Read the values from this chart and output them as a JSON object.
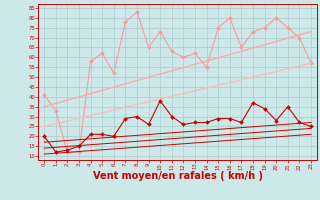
{
  "bg_color": "#cce8e8",
  "grid_color": "#aacccc",
  "xlabel": "Vent moyen/en rafales ( km/h )",
  "xlabel_color": "#cc0000",
  "xlabel_fontsize": 7,
  "tick_color": "#cc0000",
  "ylim": [
    8,
    87
  ],
  "xlim": [
    -0.5,
    23.5
  ],
  "yticks": [
    10,
    15,
    20,
    25,
    30,
    35,
    40,
    45,
    50,
    55,
    60,
    65,
    70,
    75,
    80,
    85
  ],
  "xticks": [
    0,
    1,
    2,
    3,
    4,
    5,
    6,
    7,
    8,
    9,
    10,
    11,
    12,
    13,
    14,
    15,
    16,
    17,
    18,
    19,
    20,
    21,
    22,
    23
  ],
  "series": [
    {
      "name": "rafales_max_light",
      "color": "#ff9999",
      "linewidth": 0.8,
      "marker": "D",
      "markersize": 2.0,
      "x": [
        0,
        1,
        2,
        3,
        4,
        5,
        6,
        7,
        8,
        9,
        10,
        11,
        12,
        13,
        14,
        15,
        16,
        17,
        18,
        19,
        20,
        21,
        22,
        23
      ],
      "y": [
        41,
        33,
        12,
        12,
        58,
        62,
        52,
        78,
        83,
        65,
        73,
        63,
        60,
        62,
        55,
        75,
        80,
        65,
        73,
        75,
        80,
        75,
        70,
        57
      ]
    },
    {
      "name": "trend_upper_light",
      "color": "#ffaaaa",
      "linewidth": 1.0,
      "marker": null,
      "x": [
        0,
        23
      ],
      "y": [
        35,
        73
      ]
    },
    {
      "name": "trend_mid_light",
      "color": "#ffbbbb",
      "linewidth": 1.0,
      "marker": null,
      "x": [
        0,
        23
      ],
      "y": [
        25,
        57
      ]
    },
    {
      "name": "vent_moyen_dark",
      "color": "#cc0000",
      "linewidth": 0.8,
      "marker": "D",
      "markersize": 2.0,
      "x": [
        0,
        1,
        2,
        3,
        4,
        5,
        6,
        7,
        8,
        9,
        10,
        11,
        12,
        13,
        14,
        15,
        16,
        17,
        18,
        19,
        20,
        21,
        22,
        23
      ],
      "y": [
        20,
        12,
        13,
        15,
        21,
        21,
        20,
        29,
        30,
        26,
        38,
        30,
        26,
        27,
        27,
        29,
        29,
        27,
        37,
        34,
        28,
        35,
        27,
        25
      ]
    },
    {
      "name": "trend_lower1",
      "color": "#cc0000",
      "linewidth": 0.7,
      "marker": null,
      "x": [
        0,
        23
      ],
      "y": [
        17,
        27
      ]
    },
    {
      "name": "trend_lower2",
      "color": "#cc0000",
      "linewidth": 0.7,
      "marker": null,
      "x": [
        0,
        23
      ],
      "y": [
        14,
        24
      ]
    },
    {
      "name": "trend_lower3",
      "color": "#cc0000",
      "linewidth": 0.7,
      "marker": null,
      "x": [
        0,
        23
      ],
      "y": [
        11,
        21
      ]
    }
  ]
}
